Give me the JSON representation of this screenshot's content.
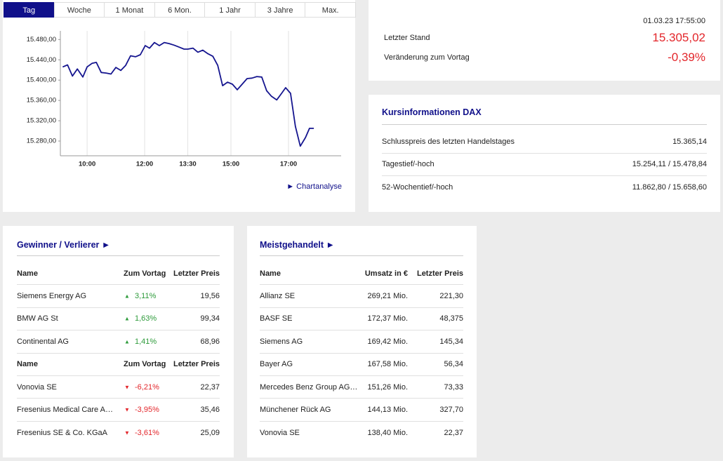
{
  "tabs": [
    "Tag",
    "Woche",
    "1 Monat",
    "6 Mon.",
    "1 Jahr",
    "3 Jahre",
    "Max."
  ],
  "chart_link": "Chartanalyse",
  "chart_data": {
    "type": "line",
    "x": [
      9.15,
      9.32,
      9.49,
      9.66,
      9.85,
      10.0,
      10.17,
      10.32,
      10.49,
      10.66,
      10.83,
      11.0,
      11.17,
      11.34,
      11.51,
      11.68,
      11.85,
      12.02,
      12.17,
      12.34,
      12.51,
      12.68,
      12.85,
      13.02,
      13.2,
      13.37,
      13.5,
      13.68,
      13.85,
      14.02,
      14.2,
      14.37,
      14.54,
      14.71,
      14.88,
      15.05,
      15.22,
      15.39,
      15.56,
      15.73,
      15.9,
      16.07,
      16.24,
      16.41,
      16.59,
      16.76,
      16.9,
      17.07,
      17.24,
      17.41,
      17.59,
      17.73,
      17.88
    ],
    "series": [
      {
        "color": "#15158f",
        "values": [
          15426,
          15430,
          15408,
          15422,
          15406,
          15426,
          15433,
          15435,
          15415,
          15414,
          15412,
          15425,
          15419,
          15429,
          15448,
          15446,
          15450,
          15468,
          15463,
          15474,
          15468,
          15474,
          15472,
          15469,
          15465,
          15461,
          15461,
          15463,
          15455,
          15459,
          15452,
          15447,
          15429,
          15389,
          15396,
          15392,
          15381,
          15392,
          15403,
          15404,
          15407,
          15406,
          15379,
          15368,
          15361,
          15374,
          15385,
          15374,
          15309,
          15270,
          15287,
          15305,
          15305
        ]
      }
    ],
    "xlim": [
      9.07,
      18.83
    ],
    "ylim": [
      15251,
      15497
    ],
    "xticks": [
      {
        "value": 10,
        "label": "10:00"
      },
      {
        "value": 12,
        "label": "12:00"
      },
      {
        "value": 13.5,
        "label": "13:30"
      },
      {
        "value": 15,
        "label": "15:00"
      },
      {
        "value": 17,
        "label": "17:00"
      }
    ],
    "yticks": [
      {
        "value": 15280,
        "label": "15.280,00"
      },
      {
        "value": 15320,
        "label": "15.320,00"
      },
      {
        "value": 15360,
        "label": "15.360,00"
      },
      {
        "value": 15400,
        "label": "15.400,00"
      },
      {
        "value": 15440,
        "label": "15.440,00"
      },
      {
        "value": 15480,
        "label": "15.480,00"
      }
    ]
  },
  "quote": {
    "timestamp": "01.03.23 17:55:00",
    "rows": [
      {
        "label": "Letzter Stand",
        "value": "15.305,02"
      },
      {
        "label": "Veränderung zum Vortag",
        "value": "-0,39%"
      }
    ]
  },
  "price_info": {
    "title": "Kursinformationen DAX",
    "rows": [
      {
        "label": "Schlusspreis des letzten Handelstages",
        "value": "15.365,14"
      },
      {
        "label": "Tagestief/-hoch",
        "value": "15.254,11 / 15.478,84"
      },
      {
        "label": "52-Wochentief/-hoch",
        "value": "11.862,80 / 15.658,60"
      }
    ]
  },
  "movers": {
    "title": "Gewinner / Verlierer",
    "groups": [
      {
        "columns": [
          "Name",
          "Zum Vortag",
          "Letzter Preis"
        ],
        "rows": [
          [
            "Siemens Energy AG",
            "3,11%",
            "19,56"
          ],
          [
            "BMW AG St",
            "1,63%",
            "99,34"
          ],
          [
            "Continental AG",
            "1,41%",
            "68,96"
          ]
        ]
      },
      {
        "columns": [
          "Name",
          "Zum Vortag",
          "Letzter Preis"
        ],
        "rows": [
          [
            "Vonovia SE",
            "-6,21%",
            "22,37"
          ],
          [
            "Fresenius Medical Care A…",
            "-3,95%",
            "35,46"
          ],
          [
            "Fresenius SE & Co. KGaA",
            "-3,61%",
            "25,09"
          ]
        ]
      }
    ]
  },
  "most_traded": {
    "title": "Meistgehandelt",
    "columns": [
      "Name",
      "Umsatz in €",
      "Letzter Preis"
    ],
    "rows": [
      [
        "Allianz SE",
        "269,21 Mio.",
        "221,30"
      ],
      [
        "BASF SE",
        "172,37 Mio.",
        "48,375"
      ],
      [
        "Siemens AG",
        "169,42 Mio.",
        "145,34"
      ],
      [
        "Bayer AG",
        "167,58 Mio.",
        "56,34"
      ],
      [
        "Mercedes Benz Group AG…",
        "151,26 Mio.",
        "73,33"
      ],
      [
        "Münchener Rück AG",
        "144,13 Mio.",
        "327,70"
      ],
      [
        "Vonovia SE",
        "138,40 Mio.",
        "22,37"
      ]
    ]
  }
}
